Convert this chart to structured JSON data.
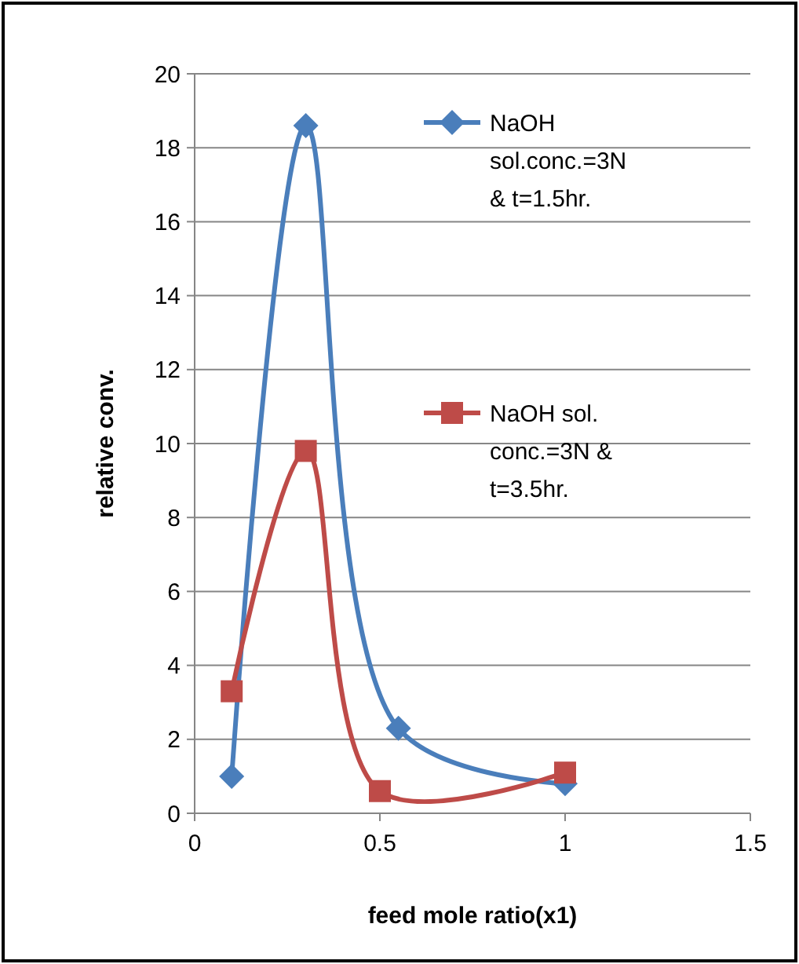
{
  "chart_data": {
    "type": "line",
    "xlabel": "feed mole ratio(x1)",
    "ylabel": "relative conv.",
    "xlim": [
      0,
      1.5
    ],
    "xticks": [
      0,
      0.5,
      1,
      1.5
    ],
    "ylim": [
      0,
      20
    ],
    "yticks": [
      0,
      2,
      4,
      6,
      8,
      10,
      12,
      14,
      16,
      18,
      20
    ],
    "grid": "y",
    "legend": "top right",
    "line_style": "solid",
    "series": [
      {
        "name": "NaOH sol.conc.=3N & t=1.5hr.",
        "color": "#4a7ebb",
        "marker": "diamond",
        "x": [
          0.1,
          0.3,
          0.55,
          1
        ],
        "values": [
          1.0,
          18.6,
          2.3,
          0.8
        ]
      },
      {
        "name": "NaOH sol. conc.=3N & t=3.5hr.",
        "color": "#be4b48",
        "marker": "square",
        "x": [
          0.1,
          0.3,
          0.5,
          1
        ],
        "values": [
          3.3,
          9.8,
          0.6,
          1.1
        ]
      }
    ]
  }
}
